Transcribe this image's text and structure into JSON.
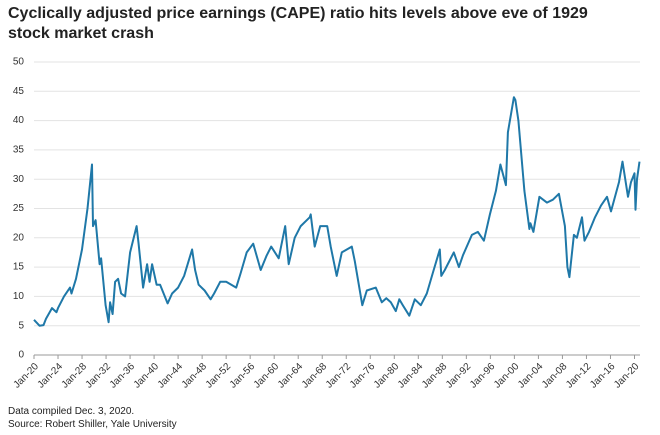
{
  "chart_data": {
    "type": "line",
    "title": "Cyclically adjusted price earnings (CAPE) ratio hits levels above eve of 1929 stock market crash",
    "notes": [
      "Data compiled Dec. 3, 2020.",
      "Source: Robert Shiller, Yale University"
    ],
    "x": [
      "1920-01",
      "1920-12",
      "1921-08",
      "1922-01",
      "1923-01",
      "1923-10",
      "1924-01",
      "1925-01",
      "1926-01",
      "1926-04",
      "1927-01",
      "1928-01",
      "1928-12",
      "1929-09",
      "1929-11",
      "1930-04",
      "1930-12",
      "1931-03",
      "1931-12",
      "1932-06",
      "1932-09",
      "1933-02",
      "1933-07",
      "1934-01",
      "1934-07",
      "1935-03",
      "1936-01",
      "1937-02",
      "1937-06",
      "1938-03",
      "1938-11",
      "1939-04",
      "1939-09",
      "1940-06",
      "1941-01",
      "1942-04",
      "1943-01",
      "1944-01",
      "1945-01",
      "1946-05",
      "1946-11",
      "1947-06",
      "1948-06",
      "1949-06",
      "1950-01",
      "1951-01",
      "1952-01",
      "1953-09",
      "1954-06",
      "1955-06",
      "1956-07",
      "1957-10",
      "1958-10",
      "1959-07",
      "1960-10",
      "1961-11",
      "1962-06",
      "1963-06",
      "1964-06",
      "1965-12",
      "1966-02",
      "1966-10",
      "1967-09",
      "1968-11",
      "1969-06",
      "1970-06",
      "1971-04",
      "1972-12",
      "1973-06",
      "1974-09",
      "1975-06",
      "1976-12",
      "1977-12",
      "1978-09",
      "1979-06",
      "1980-04",
      "1980-11",
      "1981-06",
      "1982-07",
      "1983-06",
      "1984-06",
      "1985-06",
      "1986-06",
      "1987-08",
      "1987-11",
      "1988-06",
      "1989-12",
      "1990-10",
      "1991-06",
      "1992-12",
      "1993-12",
      "1994-12",
      "1995-12",
      "1996-12",
      "1997-09",
      "1998-08",
      "1998-12",
      "1999-12",
      "2000-03",
      "2000-09",
      "2001-09",
      "2002-07",
      "2002-09",
      "2003-03",
      "2004-03",
      "2005-06",
      "2006-06",
      "2007-06",
      "2008-06",
      "2008-11",
      "2009-03",
      "2009-12",
      "2010-06",
      "2011-04",
      "2011-09",
      "2012-06",
      "2013-06",
      "2014-06",
      "2015-06",
      "2016-02",
      "2017-06",
      "2018-01",
      "2018-12",
      "2019-06",
      "2020-01",
      "2020-03",
      "2020-06",
      "2020-11"
    ],
    "series": [
      {
        "name": "CAPE ratio",
        "color": "#1f78a8",
        "values": [
          6.0,
          5.0,
          5.1,
          6.2,
          8.0,
          7.3,
          8.0,
          10.0,
          11.5,
          10.5,
          13.0,
          18.0,
          25.0,
          32.5,
          22.0,
          23.0,
          15.5,
          16.5,
          8.5,
          5.6,
          9.0,
          7.0,
          12.5,
          13.0,
          10.5,
          10.0,
          17.5,
          22.0,
          19.0,
          11.5,
          15.5,
          12.5,
          15.5,
          12.0,
          12.0,
          8.8,
          10.5,
          11.5,
          13.5,
          18.0,
          14.5,
          12.0,
          11.0,
          9.5,
          10.5,
          12.5,
          12.5,
          11.5,
          14.0,
          17.5,
          19.0,
          14.5,
          17.0,
          18.5,
          16.5,
          22.0,
          15.5,
          20.0,
          22.0,
          23.5,
          24.0,
          18.5,
          22.0,
          22.0,
          18.5,
          13.5,
          17.5,
          18.5,
          16.0,
          8.5,
          11.0,
          11.5,
          9.0,
          9.7,
          9.0,
          7.5,
          9.5,
          8.5,
          6.7,
          9.5,
          8.5,
          10.5,
          14.0,
          18.0,
          13.5,
          14.5,
          17.5,
          15.0,
          17.0,
          20.5,
          21.0,
          19.5,
          24.0,
          28.0,
          32.5,
          29.0,
          38.0,
          44.0,
          43.5,
          40.0,
          28.0,
          21.5,
          22.5,
          21.0,
          27.0,
          26.0,
          26.5,
          27.5,
          22.0,
          15.0,
          13.3,
          20.5,
          20.0,
          23.5,
          19.5,
          21.0,
          23.5,
          25.5,
          27.0,
          24.5,
          29.5,
          33.0,
          27.0,
          29.5,
          31.0,
          24.8,
          30.0,
          33.0
        ]
      }
    ],
    "xlim": [
      "1920-01",
      "2020-12"
    ],
    "xticks": [
      {
        "value": "1920-01",
        "label": "Jan-20"
      },
      {
        "value": "1924-01",
        "label": "Jan-24"
      },
      {
        "value": "1928-01",
        "label": "Jan-28"
      },
      {
        "value": "1932-01",
        "label": "Jan-32"
      },
      {
        "value": "1936-01",
        "label": "Jan-36"
      },
      {
        "value": "1940-01",
        "label": "Jan-40"
      },
      {
        "value": "1944-01",
        "label": "Jan-44"
      },
      {
        "value": "1948-01",
        "label": "Jan-48"
      },
      {
        "value": "1952-01",
        "label": "Jan-52"
      },
      {
        "value": "1956-01",
        "label": "Jan-56"
      },
      {
        "value": "1960-01",
        "label": "Jan-60"
      },
      {
        "value": "1964-01",
        "label": "Jan-64"
      },
      {
        "value": "1968-01",
        "label": "Jan-68"
      },
      {
        "value": "1972-01",
        "label": "Jan-72"
      },
      {
        "value": "1976-01",
        "label": "Jan-76"
      },
      {
        "value": "1980-01",
        "label": "Jan-80"
      },
      {
        "value": "1984-01",
        "label": "Jan-84"
      },
      {
        "value": "1988-01",
        "label": "Jan-88"
      },
      {
        "value": "1992-01",
        "label": "Jan-92"
      },
      {
        "value": "1996-01",
        "label": "Jan-96"
      },
      {
        "value": "2000-01",
        "label": "Jan-00"
      },
      {
        "value": "2004-01",
        "label": "Jan-04"
      },
      {
        "value": "2008-01",
        "label": "Jan-08"
      },
      {
        "value": "2012-01",
        "label": "Jan-12"
      },
      {
        "value": "2016-01",
        "label": "Jan-16"
      },
      {
        "value": "2020-01",
        "label": "Jan-20"
      }
    ],
    "ylim": [
      0,
      50
    ],
    "yticks": [
      0,
      5,
      10,
      15,
      20,
      25,
      30,
      35,
      40,
      45,
      50
    ],
    "grid": true
  }
}
